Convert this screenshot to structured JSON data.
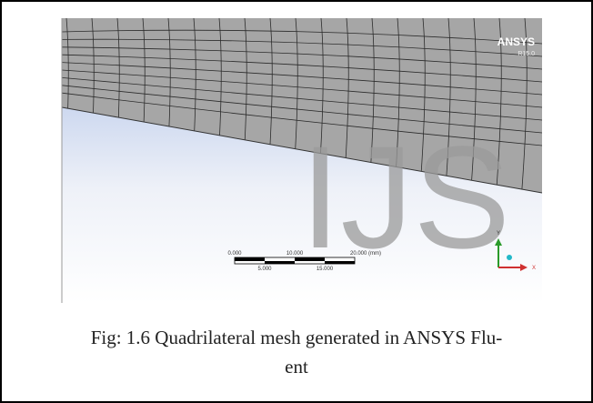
{
  "figure": {
    "logo": {
      "name": "ANSYS",
      "version": "R15.0"
    },
    "watermark": "IJS",
    "scale_bar": {
      "top_labels": [
        "0.000",
        "10.000",
        "20.000 (mm)"
      ],
      "bottom_labels": [
        "5.000",
        "15.000"
      ]
    },
    "triad": {
      "y_label": "Y",
      "x_label": "X"
    },
    "caption": [
      "Fig: 1.6 Quadrilateral mesh generated in ANSYS Flu-",
      "ent"
    ]
  }
}
